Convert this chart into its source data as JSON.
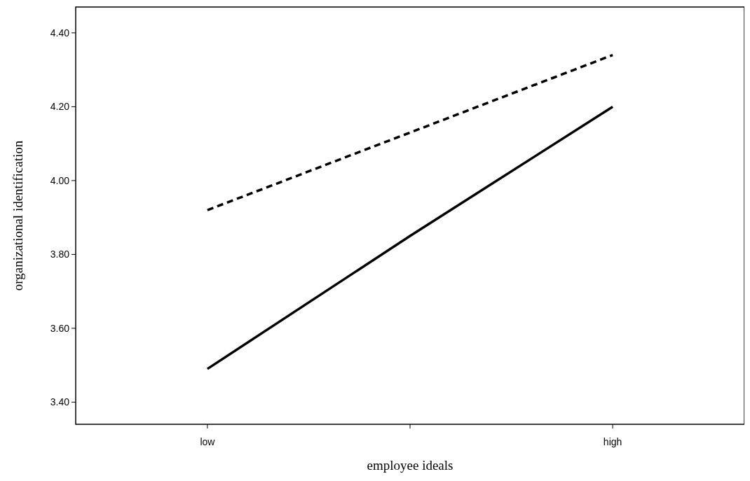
{
  "chart_data": {
    "type": "line",
    "xlabel": "employee ideals",
    "ylabel": "organizational identification",
    "categories": [
      "low",
      null,
      "high"
    ],
    "series": [
      {
        "color": "#000000",
        "line_style": "dashed",
        "values": [
          3.92,
          4.13,
          4.34
        ]
      },
      {
        "color": "#000000",
        "line_style": "solid",
        "values": [
          3.49,
          3.85,
          4.2
        ]
      }
    ],
    "ylim": [
      3.34,
      4.47
    ],
    "yticks": [
      {
        "value": 3.4,
        "label": "3.40"
      },
      {
        "value": 3.6,
        "label": "3.60"
      },
      {
        "value": 3.8,
        "label": "3.80"
      },
      {
        "value": 4.0,
        "label": "4.00"
      },
      {
        "value": 4.2,
        "label": "4.20"
      },
      {
        "value": 4.4,
        "label": "4.40"
      }
    ],
    "grid": false,
    "marker": "none"
  }
}
